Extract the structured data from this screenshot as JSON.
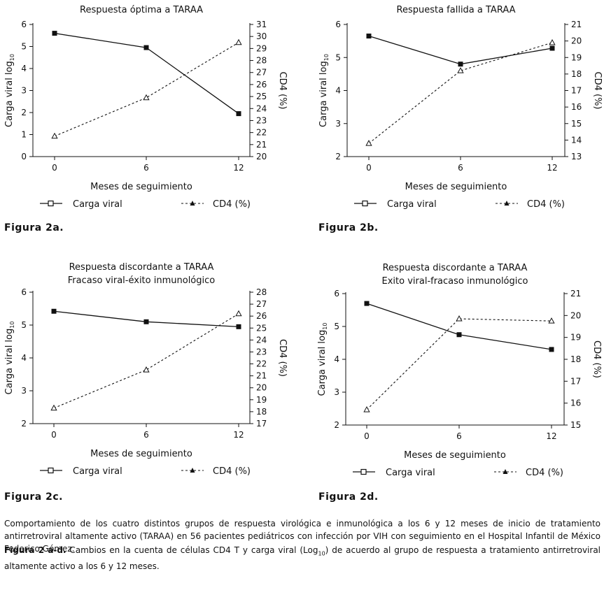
{
  "chart_data": [
    {
      "type": "line",
      "title": "Respuesta óptima a TARAA",
      "subtitle": "",
      "xlabel": "Meses de seguimiento",
      "ylabel_prefix": "Carga viral log",
      "ylabel_sub": "10",
      "y2label": "CD4 (%)",
      "categories": [
        "0",
        "6",
        "12"
      ],
      "ylim": [
        0,
        6
      ],
      "yticks": [
        "0",
        "1",
        "2",
        "3",
        "4",
        "5",
        "6"
      ],
      "y2lim": [
        20,
        31
      ],
      "y2ticks": [
        "20",
        "21",
        "22",
        "23",
        "24",
        "25",
        "26",
        "27",
        "28",
        "29",
        "30",
        "31"
      ],
      "series": [
        {
          "name": "Carga viral",
          "axis": "left",
          "values": [
            5.6,
            4.95,
            1.95
          ]
        },
        {
          "name": "CD4 (%)",
          "axis": "right",
          "values": [
            21.7,
            24.9,
            29.5
          ]
        }
      ],
      "figure_label": "Figura 2a."
    },
    {
      "type": "line",
      "title": "Respuesta fallida a TARAA",
      "subtitle": "",
      "xlabel": "Meses de seguimiento",
      "ylabel_prefix": "Carga viral log",
      "ylabel_sub": "10",
      "y2label": "CD4 (%)",
      "categories": [
        "0",
        "6",
        "12"
      ],
      "ylim": [
        2,
        6
      ],
      "yticks": [
        "2",
        "3",
        "4",
        "5",
        "6"
      ],
      "y2lim": [
        13,
        21
      ],
      "y2ticks": [
        "13",
        "14",
        "15",
        "16",
        "17",
        "18",
        "19",
        "20",
        "21"
      ],
      "series": [
        {
          "name": "Carga viral",
          "axis": "left",
          "values": [
            5.65,
            4.8,
            5.28
          ]
        },
        {
          "name": "CD4 (%)",
          "axis": "right",
          "values": [
            13.8,
            18.2,
            19.9
          ]
        }
      ],
      "figure_label": "Figura 2b."
    },
    {
      "type": "line",
      "title": "Respuesta discordante a TARAA",
      "subtitle": "Fracaso viral-éxito inmunológico",
      "xlabel": "Meses de seguimiento",
      "ylabel_prefix": "Carga viral log",
      "ylabel_sub": "10",
      "y2label": "CD4 (%)",
      "categories": [
        "0",
        "6",
        "12"
      ],
      "ylim": [
        2,
        6
      ],
      "yticks": [
        "2",
        "3",
        "4",
        "5",
        "6"
      ],
      "y2lim": [
        17,
        28
      ],
      "y2ticks": [
        "17",
        "18",
        "19",
        "20",
        "21",
        "22",
        "23",
        "24",
        "25",
        "26",
        "27",
        "28"
      ],
      "series": [
        {
          "name": "Carga viral",
          "axis": "left",
          "values": [
            5.42,
            5.1,
            4.95
          ]
        },
        {
          "name": "CD4 (%)",
          "axis": "right",
          "values": [
            18.3,
            21.5,
            26.2
          ]
        }
      ],
      "figure_label": "Figura 2c."
    },
    {
      "type": "line",
      "title": "Respuesta discordante a TARAA",
      "subtitle": "Exito viral-fracaso inmunológico",
      "xlabel": "Meses de seguimiento",
      "ylabel_prefix": "Carga viral log",
      "ylabel_sub": "10",
      "y2label": "CD4 (%)",
      "categories": [
        "0",
        "6",
        "12"
      ],
      "ylim": [
        2,
        6
      ],
      "yticks": [
        "2",
        "3",
        "4",
        "5",
        "6"
      ],
      "y2lim": [
        15,
        21
      ],
      "y2ticks": [
        "15",
        "16",
        "17",
        "18",
        "19",
        "20",
        "21"
      ],
      "series": [
        {
          "name": "Carga viral",
          "axis": "left",
          "values": [
            5.7,
            4.75,
            4.3
          ]
        },
        {
          "name": "CD4 (%)",
          "axis": "right",
          "values": [
            15.7,
            19.85,
            19.75
          ]
        }
      ],
      "figure_label": "Figura 2d."
    }
  ],
  "legend": {
    "carga": "Carga viral",
    "cd4": "CD4 (%)"
  },
  "caption": {
    "paragraph1": "Comportamiento de los cuatro distintos grupos de respuesta virológica e inmunológica a los 6 y 12 meses de inicio de tratamiento antirretroviral altamente activo (TARAA) en 56 pacientes pediátricos con infección por VIH con seguimiento en el Hospital Infantil de México Federico Gómez.",
    "fig_label": "Figura 2 a-d.",
    "paragraph2_a": " Cambios en la cuenta de células CD4 T y carga viral (Log",
    "paragraph2_sub": "10",
    "paragraph2_b": ") de acuerdo al grupo de respuesta a tratamiento antirretroviral altamente activo a los 6 y 12 meses."
  },
  "colors": {
    "ink": "#111111",
    "background": "#ffffff"
  }
}
